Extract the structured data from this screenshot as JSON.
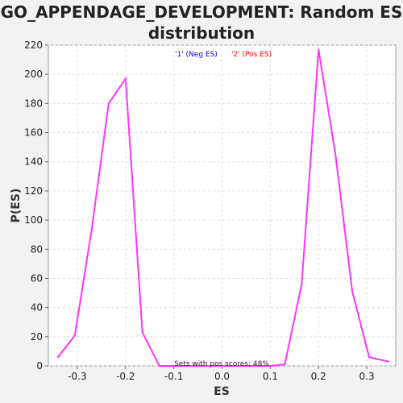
{
  "chart_data": {
    "type": "line",
    "title_line1": "GO_APPENDAGE_DEVELOPMENT: Random ES",
    "title_line2": "distribution",
    "xlabel": "ES",
    "ylabel": "P(ES)",
    "xlim": [
      -0.36,
      0.36
    ],
    "ylim": [
      0,
      220
    ],
    "xticks": [
      -0.3,
      -0.2,
      -0.1,
      0.0,
      0.1,
      0.2,
      0.3
    ],
    "xtick_labels": [
      "-0.3",
      "-0.2",
      "-0.1",
      "0.0",
      "0.1",
      "0.2",
      "0.3"
    ],
    "yticks": [
      0,
      20,
      40,
      60,
      80,
      100,
      120,
      140,
      160,
      180,
      200,
      220
    ],
    "ytick_labels": [
      "0",
      "20",
      "40",
      "60",
      "80",
      "100",
      "120",
      "140",
      "160",
      "180",
      "200",
      "220"
    ],
    "grid": true,
    "legend": [
      {
        "label": "'1' (Neg ES)",
        "color": "#0000ff"
      },
      {
        "label": "'2' (Pos ES)",
        "color": "#ff0000"
      }
    ],
    "annotation": "Sets with pos scores: 48%",
    "series": [
      {
        "color": "#ff33ff",
        "x": [
          -0.34,
          -0.305,
          -0.27,
          -0.235,
          -0.2,
          -0.165,
          -0.13,
          -0.1,
          0.1,
          0.13,
          0.165,
          0.2,
          0.235,
          0.27,
          0.305,
          0.345
        ],
        "y": [
          6,
          21,
          94,
          180,
          197,
          23,
          0,
          0,
          0,
          1,
          56,
          217,
          145,
          51,
          6,
          3
        ]
      }
    ]
  }
}
